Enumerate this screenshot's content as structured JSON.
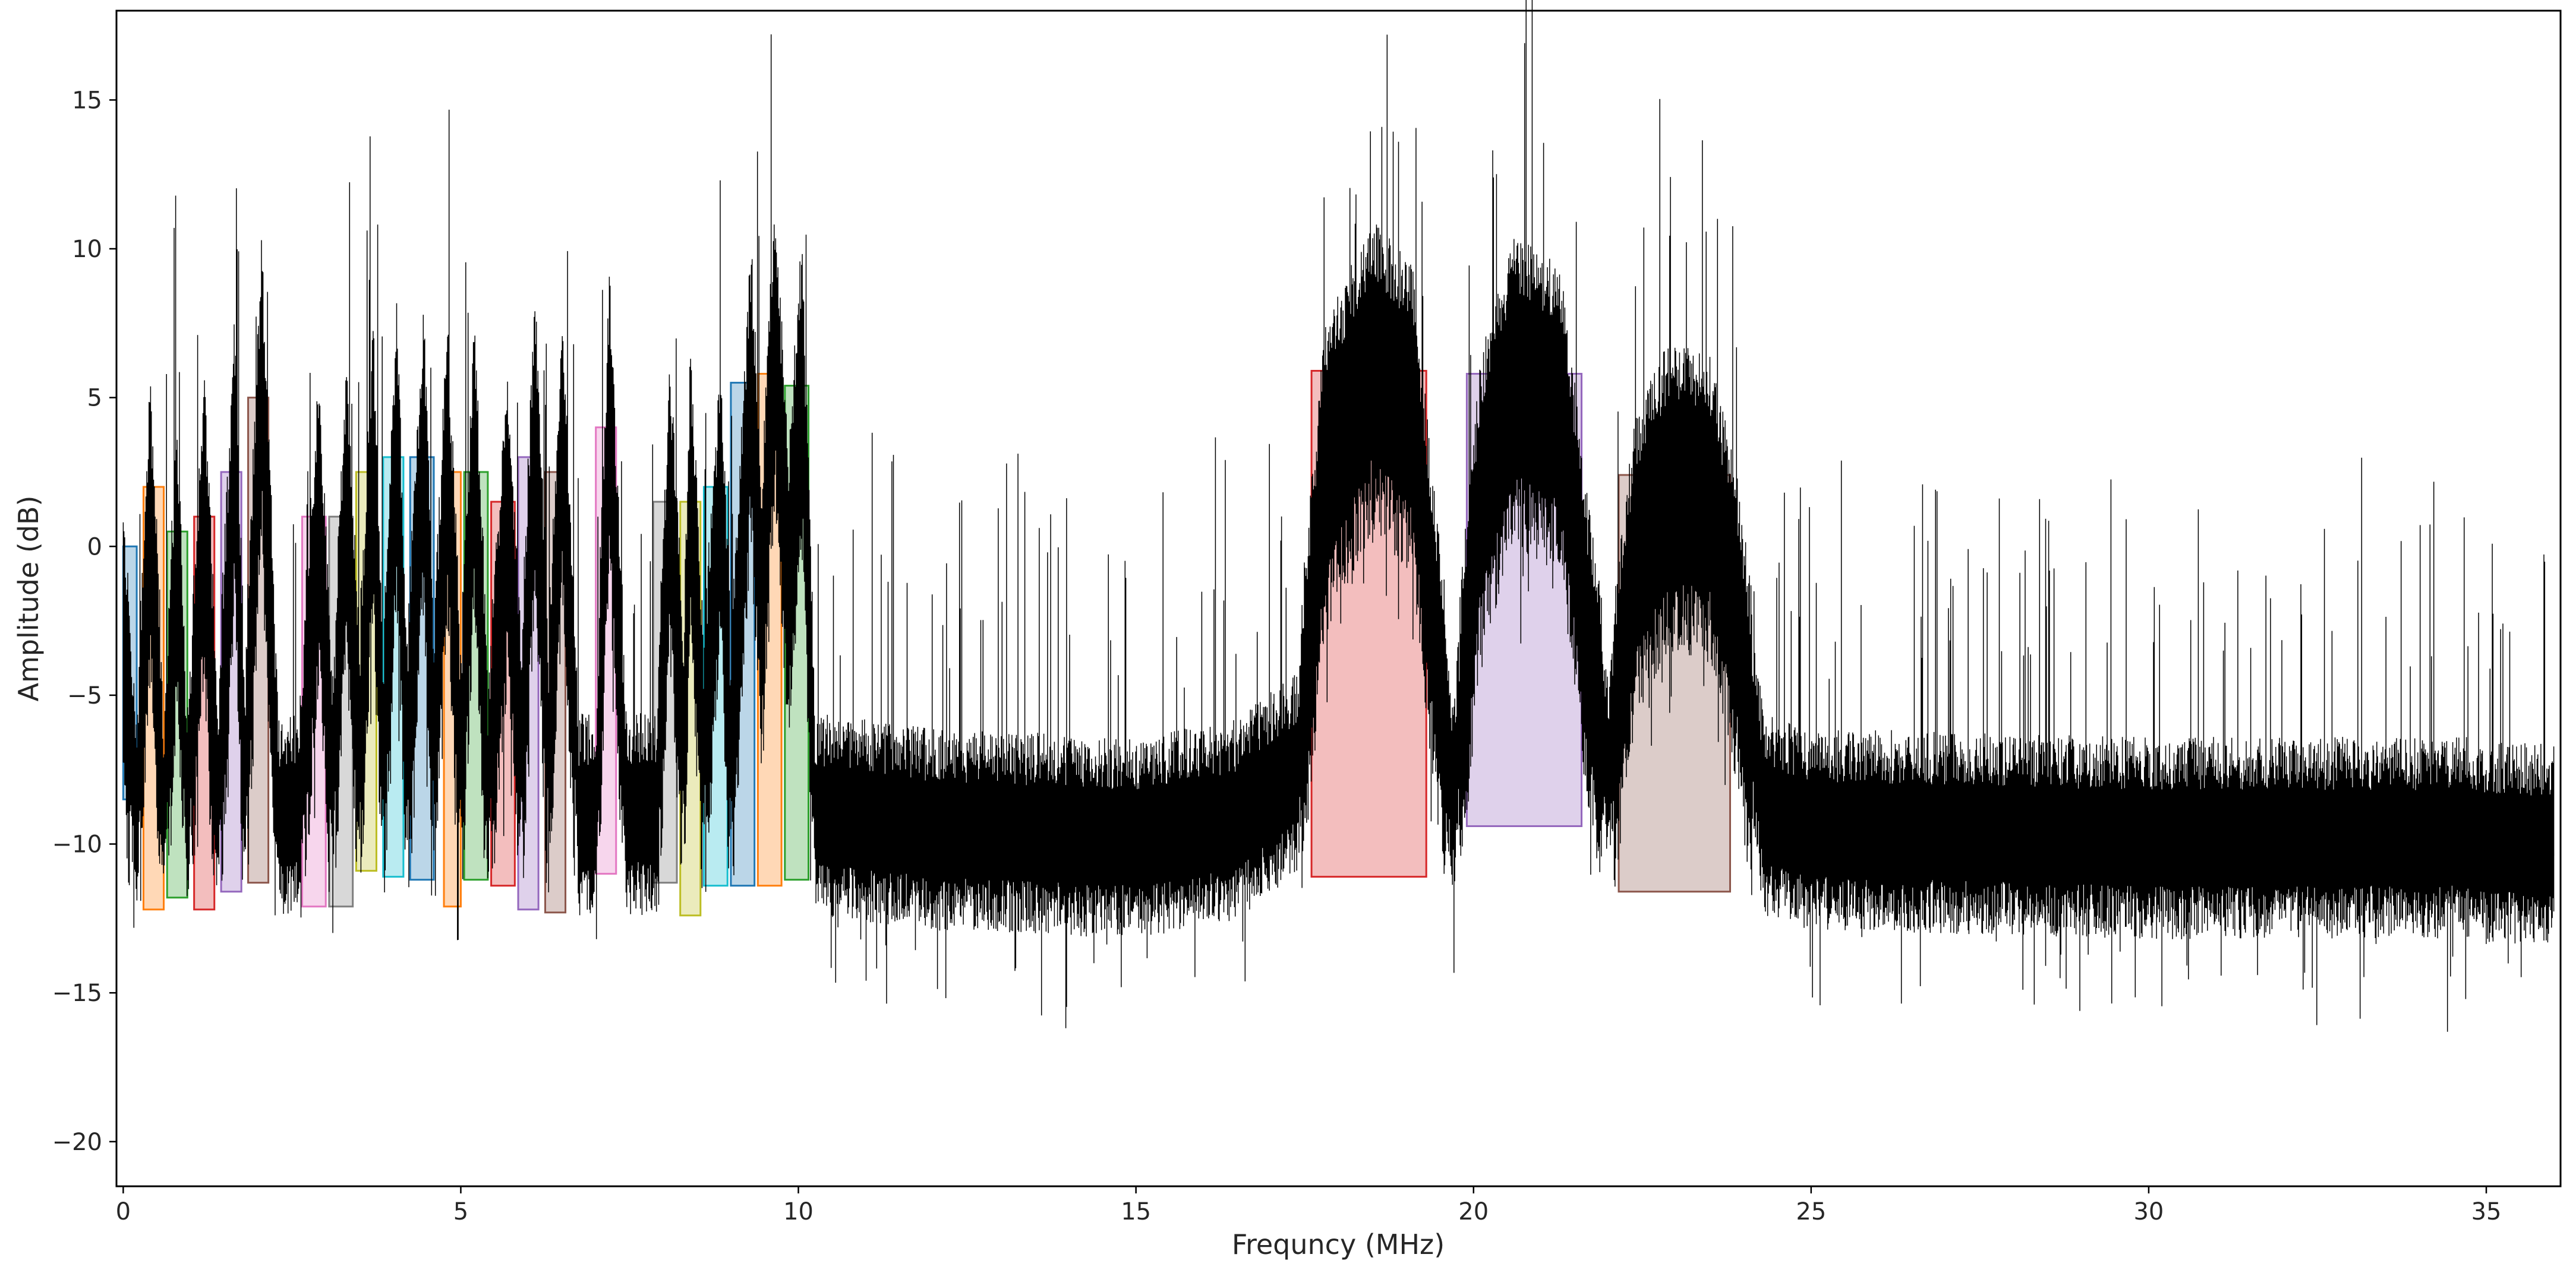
{
  "chart_data": {
    "type": "line",
    "title": "",
    "xlabel": "Frequncy (MHz)",
    "ylabel": "Amplitude (dB)",
    "xlim": [
      -0.1,
      36.1
    ],
    "ylim": [
      -21.5,
      18
    ],
    "xticks": [
      0,
      5,
      10,
      15,
      20,
      25,
      30,
      35
    ],
    "yticks": [
      -20,
      -15,
      -10,
      -5,
      0,
      5,
      10,
      15
    ],
    "xtick_labels": [
      "0",
      "5",
      "10",
      "15",
      "20",
      "25",
      "30",
      "35"
    ],
    "ytick_labels": [
      "−20",
      "−15",
      "−10",
      "−5",
      "0",
      "5",
      "10",
      "15"
    ],
    "grid": false,
    "legend": "none",
    "series": [
      {
        "color": "#000000",
        "noise_floor_db": -9.7,
        "envelope": [
          [
            0.0,
            -3
          ],
          [
            0.1,
            -6
          ],
          [
            0.2,
            -9
          ],
          [
            0.4,
            1.5
          ],
          [
            0.6,
            -9
          ],
          [
            0.8,
            0
          ],
          [
            0.95,
            -9
          ],
          [
            1.2,
            1.5
          ],
          [
            1.4,
            -9
          ],
          [
            1.65,
            3.5
          ],
          [
            1.8,
            -8
          ],
          [
            2.05,
            6
          ],
          [
            2.3,
            -9
          ],
          [
            2.6,
            -9
          ],
          [
            2.9,
            1.5
          ],
          [
            3.1,
            -8
          ],
          [
            3.3,
            2
          ],
          [
            3.5,
            -7
          ],
          [
            3.7,
            3.5
          ],
          [
            3.85,
            -7
          ],
          [
            4.05,
            4
          ],
          [
            4.2,
            -7
          ],
          [
            4.45,
            4
          ],
          [
            4.6,
            -7
          ],
          [
            4.8,
            3.5
          ],
          [
            5.0,
            -7
          ],
          [
            5.2,
            3.5
          ],
          [
            5.4,
            -8
          ],
          [
            5.7,
            1.5
          ],
          [
            5.9,
            -7
          ],
          [
            6.1,
            4.5
          ],
          [
            6.3,
            -7
          ],
          [
            6.5,
            3.5
          ],
          [
            6.75,
            -9
          ],
          [
            7.0,
            -9
          ],
          [
            7.2,
            5
          ],
          [
            7.45,
            -9
          ],
          [
            7.9,
            -9
          ],
          [
            8.1,
            2
          ],
          [
            8.3,
            -7
          ],
          [
            8.4,
            2.5
          ],
          [
            8.6,
            -7
          ],
          [
            8.85,
            2
          ],
          [
            9.0,
            -7
          ],
          [
            9.3,
            6
          ],
          [
            9.45,
            -2
          ],
          [
            9.65,
            7.5
          ],
          [
            9.85,
            -1
          ],
          [
            10.05,
            6
          ],
          [
            10.25,
            -9
          ],
          [
            12.0,
            -9.5
          ],
          [
            15.0,
            -9.8
          ],
          [
            16.5,
            -9.2
          ],
          [
            17.4,
            -7.5
          ],
          [
            17.8,
            3
          ],
          [
            18.5,
            6.5
          ],
          [
            19.1,
            5
          ],
          [
            19.4,
            -2
          ],
          [
            19.7,
            -8.5
          ],
          [
            20.1,
            2
          ],
          [
            20.6,
            6
          ],
          [
            21.3,
            5
          ],
          [
            21.7,
            -3
          ],
          [
            22.0,
            -7.5
          ],
          [
            22.4,
            0
          ],
          [
            22.9,
            2.5
          ],
          [
            23.5,
            2
          ],
          [
            23.9,
            -2
          ],
          [
            24.3,
            -9
          ],
          [
            25.0,
            -9.5
          ],
          [
            30.0,
            -9.8
          ],
          [
            34.9,
            -9.8
          ],
          [
            35.0,
            -10
          ],
          [
            35.3,
            -10
          ],
          [
            36.1,
            -10
          ]
        ]
      }
    ],
    "annotations": [
      {
        "x0": 0.0,
        "x1": 0.2,
        "y0": -8.5,
        "y1": 0.0,
        "color": "#1f77b4"
      },
      {
        "x0": 0.3,
        "x1": 0.6,
        "y0": -12.2,
        "y1": 2.0,
        "color": "#ff7f0e"
      },
      {
        "x0": 0.65,
        "x1": 0.95,
        "y0": -11.8,
        "y1": 0.5,
        "color": "#2ca02c"
      },
      {
        "x0": 1.05,
        "x1": 1.35,
        "y0": -12.2,
        "y1": 1.0,
        "color": "#d62728"
      },
      {
        "x0": 1.45,
        "x1": 1.75,
        "y0": -11.6,
        "y1": 2.5,
        "color": "#9467bd"
      },
      {
        "x0": 1.85,
        "x1": 2.15,
        "y0": -11.3,
        "y1": 5.0,
        "color": "#8c564b"
      },
      {
        "x0": 2.65,
        "x1": 3.0,
        "y0": -12.1,
        "y1": 1.0,
        "color": "#e377c2"
      },
      {
        "x0": 3.05,
        "x1": 3.4,
        "y0": -12.1,
        "y1": 1.0,
        "color": "#7f7f7f"
      },
      {
        "x0": 3.45,
        "x1": 3.75,
        "y0": -10.9,
        "y1": 2.5,
        "color": "#bcbd22"
      },
      {
        "x0": 3.85,
        "x1": 4.15,
        "y0": -11.1,
        "y1": 3.0,
        "color": "#17becf"
      },
      {
        "x0": 4.25,
        "x1": 4.6,
        "y0": -11.2,
        "y1": 3.0,
        "color": "#1f77b4"
      },
      {
        "x0": 4.75,
        "x1": 5.0,
        "y0": -12.1,
        "y1": 2.5,
        "color": "#ff7f0e"
      },
      {
        "x0": 5.05,
        "x1": 5.4,
        "y0": -11.2,
        "y1": 2.5,
        "color": "#2ca02c"
      },
      {
        "x0": 5.45,
        "x1": 5.8,
        "y0": -11.4,
        "y1": 1.5,
        "color": "#d62728"
      },
      {
        "x0": 5.85,
        "x1": 6.15,
        "y0": -12.2,
        "y1": 3.0,
        "color": "#9467bd"
      },
      {
        "x0": 6.25,
        "x1": 6.55,
        "y0": -12.3,
        "y1": 2.5,
        "color": "#8c564b"
      },
      {
        "x0": 7.0,
        "x1": 7.3,
        "y0": -11.0,
        "y1": 4.0,
        "color": "#e377c2"
      },
      {
        "x0": 7.85,
        "x1": 8.2,
        "y0": -11.3,
        "y1": 1.5,
        "color": "#7f7f7f"
      },
      {
        "x0": 8.25,
        "x1": 8.55,
        "y0": -12.4,
        "y1": 1.5,
        "color": "#bcbd22"
      },
      {
        "x0": 8.6,
        "x1": 8.95,
        "y0": -11.4,
        "y1": 2.0,
        "color": "#17becf"
      },
      {
        "x0": 9.0,
        "x1": 9.35,
        "y0": -11.4,
        "y1": 5.5,
        "color": "#1f77b4"
      },
      {
        "x0": 9.4,
        "x1": 9.75,
        "y0": -11.4,
        "y1": 5.8,
        "color": "#ff7f0e"
      },
      {
        "x0": 9.8,
        "x1": 10.15,
        "y0": -11.2,
        "y1": 5.4,
        "color": "#2ca02c"
      },
      {
        "x0": 17.6,
        "x1": 19.3,
        "y0": -11.1,
        "y1": 5.9,
        "color": "#d62728"
      },
      {
        "x0": 19.9,
        "x1": 21.6,
        "y0": -9.4,
        "y1": 5.8,
        "color": "#9467bd"
      },
      {
        "x0": 22.15,
        "x1": 23.8,
        "y0": -11.6,
        "y1": 2.4,
        "color": "#8c564b"
      }
    ]
  }
}
